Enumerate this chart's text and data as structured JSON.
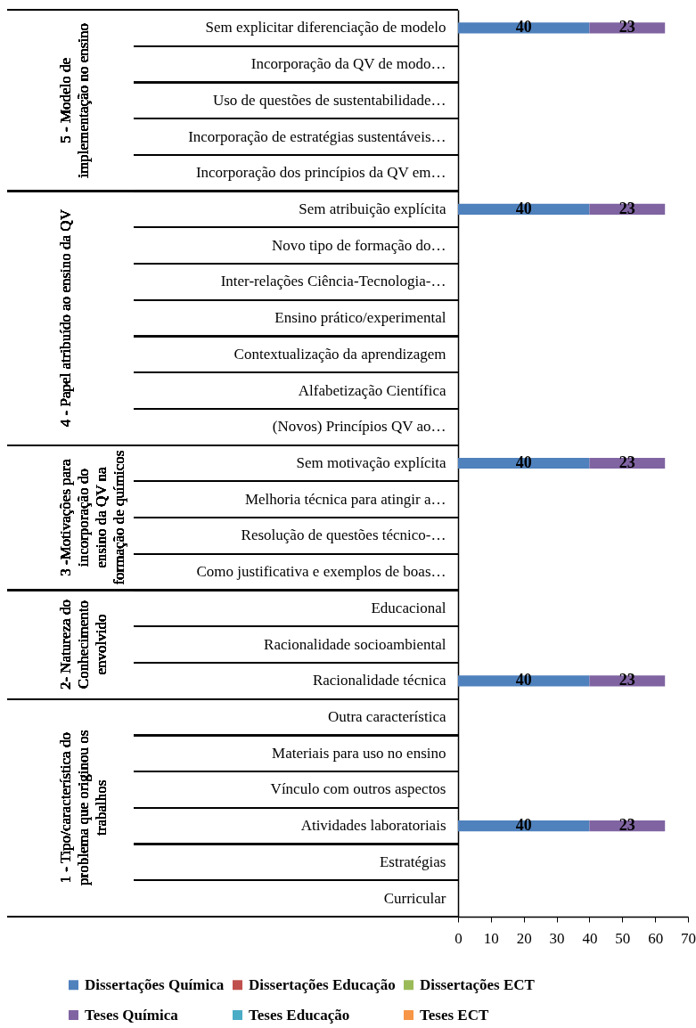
{
  "chart_data": {
    "type": "bar",
    "orientation": "horizontal",
    "stacked": true,
    "data_labels": true,
    "grid": false,
    "legend": "bottom",
    "categories": [
      "Sem explicitar diferenciação de modelo",
      "Incorporação da QV de modo…",
      "Uso de questões de sustentabilidade…",
      "Incorporação de estratégias sustentáveis…",
      "Incorporação dos princípios da QV em…",
      "Sem atribuição explícita",
      "Novo tipo de formação do…",
      "Inter-relações Ciência-Tecnologia-…",
      "Ensino prático/experimental",
      "Contextualização da aprendizagem",
      "Alfabetização Científica",
      "(Novos) Princípios QV ao…",
      "Sem motivação explícita",
      "Melhoria técnica para atingir a…",
      "Resolução de questões técnico-…",
      "Como justificativa e exemplos de boas…",
      "Educacional",
      "Racionalidade socioambiental",
      "Racionalidade técnica",
      "Outra característica",
      "Materiais para uso no ensino",
      "Vínculo com outros aspectos",
      "Atividades laboratoriais",
      "Estratégias",
      "Curricular"
    ],
    "series": [
      {
        "name": "Dissertações Química",
        "color": "#4f81bd",
        "values": [
          40,
          null,
          null,
          null,
          null,
          40,
          null,
          null,
          null,
          null,
          null,
          null,
          40,
          null,
          null,
          null,
          null,
          null,
          40,
          null,
          null,
          null,
          40,
          null,
          null
        ]
      },
      {
        "name": "Dissertações Educação",
        "color": "#c0504d",
        "values": [
          null,
          null,
          null,
          null,
          null,
          null,
          null,
          null,
          null,
          null,
          null,
          null,
          null,
          null,
          null,
          null,
          null,
          null,
          null,
          null,
          null,
          null,
          null,
          null,
          null
        ]
      },
      {
        "name": "Dissertações ECT",
        "color": "#9bbb59",
        "values": [
          null,
          null,
          null,
          null,
          null,
          null,
          null,
          null,
          null,
          null,
          null,
          null,
          null,
          null,
          null,
          null,
          null,
          null,
          null,
          null,
          null,
          null,
          null,
          null,
          null
        ]
      },
      {
        "name": "Teses Química",
        "color": "#8064a2",
        "values": [
          23,
          null,
          null,
          null,
          null,
          23,
          null,
          null,
          null,
          null,
          null,
          null,
          23,
          null,
          null,
          null,
          null,
          null,
          23,
          null,
          null,
          null,
          23,
          null,
          null
        ]
      },
      {
        "name": "Teses Educação",
        "color": "#4bacc6",
        "values": [
          null,
          null,
          null,
          null,
          null,
          null,
          null,
          null,
          null,
          null,
          null,
          null,
          null,
          null,
          null,
          null,
          null,
          null,
          null,
          null,
          null,
          null,
          null,
          null,
          null
        ]
      },
      {
        "name": "Teses ECT",
        "color": "#f79646",
        "values": [
          null,
          null,
          null,
          null,
          null,
          null,
          null,
          null,
          null,
          null,
          null,
          null,
          null,
          null,
          null,
          null,
          null,
          null,
          null,
          null,
          null,
          null,
          null,
          null,
          null
        ]
      }
    ],
    "xlim": [
      0,
      70
    ],
    "xticks": [
      0,
      10,
      20,
      30,
      40,
      50,
      60,
      70
    ],
    "annotations": [
      "5 - Modelo de implementação no ensino",
      "4 - Papel atribuído ao ensino da QV",
      "3 -Motivações para incorporação do ensino da QV na formação de químicos",
      "2- Natureza do Conhecimento envolvido",
      "1 - Tipo/característica do problema que originou os trabalhos"
    ]
  }
}
